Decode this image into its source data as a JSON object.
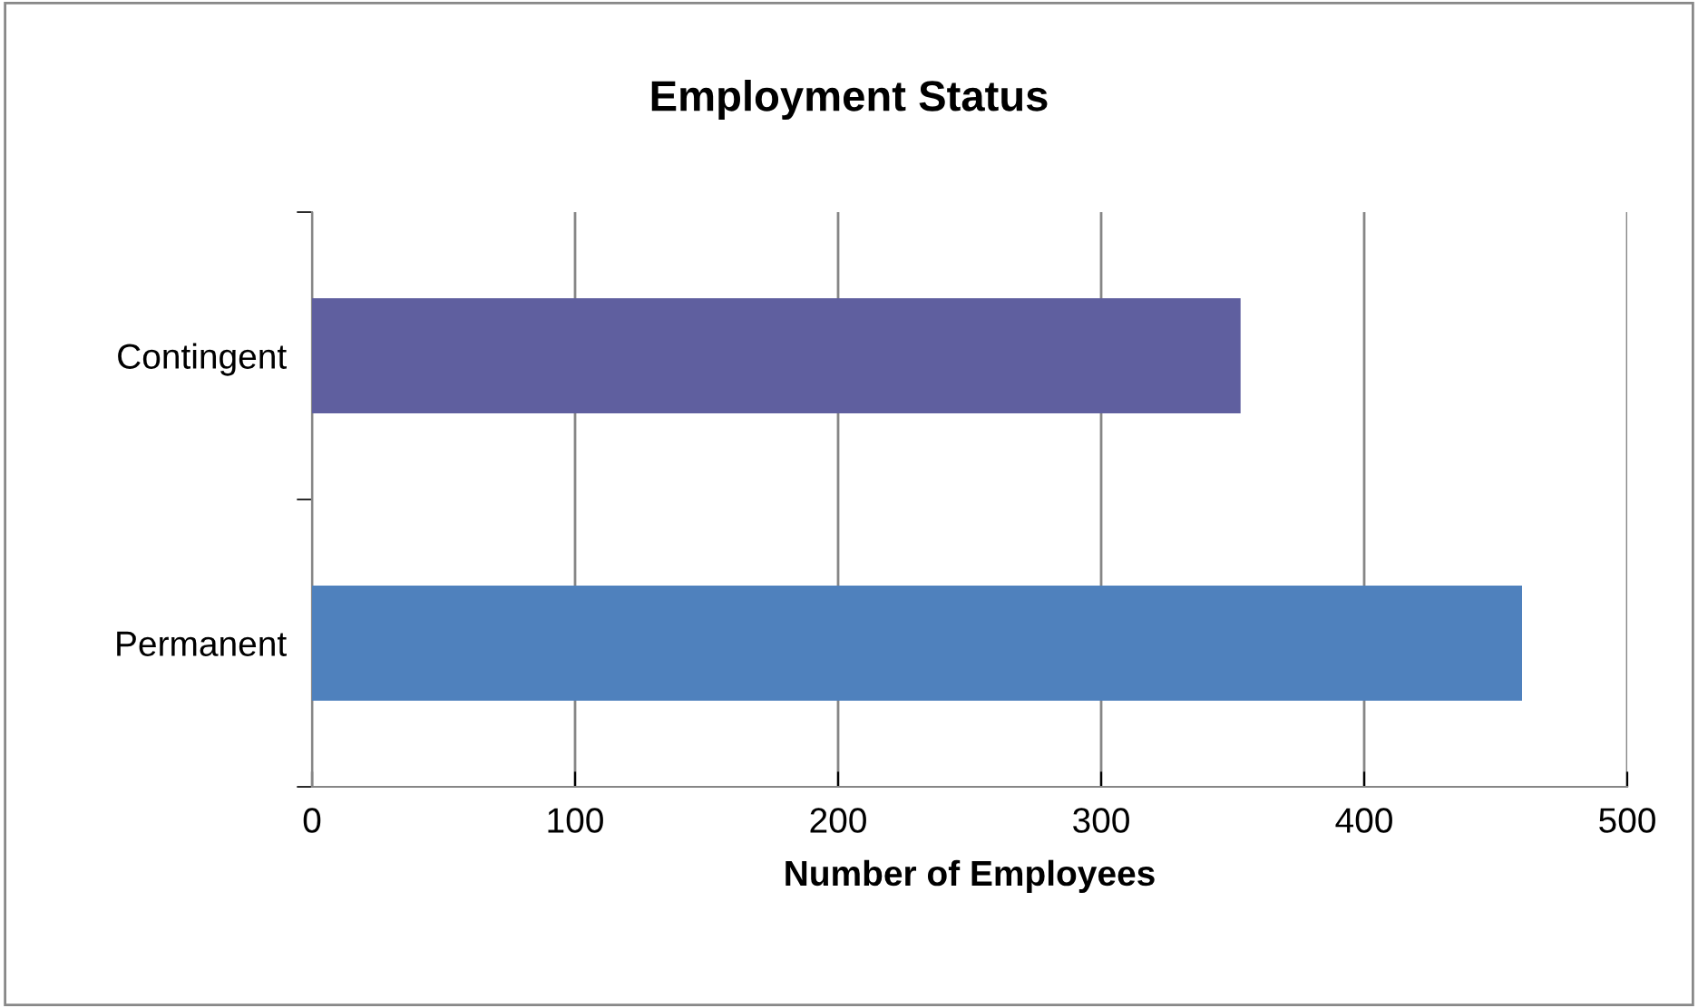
{
  "chart_data": {
    "type": "bar",
    "orientation": "horizontal",
    "title": "Employment Status",
    "xlabel": "Number of Employees",
    "categories": [
      "Contingent",
      "Permanent"
    ],
    "values": [
      353,
      460
    ],
    "colors": [
      "#5f5f9f",
      "#4f81bd"
    ],
    "xlim": [
      0,
      500
    ],
    "xticks": [
      0,
      100,
      200,
      300,
      400,
      500
    ],
    "grid": "x",
    "legend": false
  }
}
